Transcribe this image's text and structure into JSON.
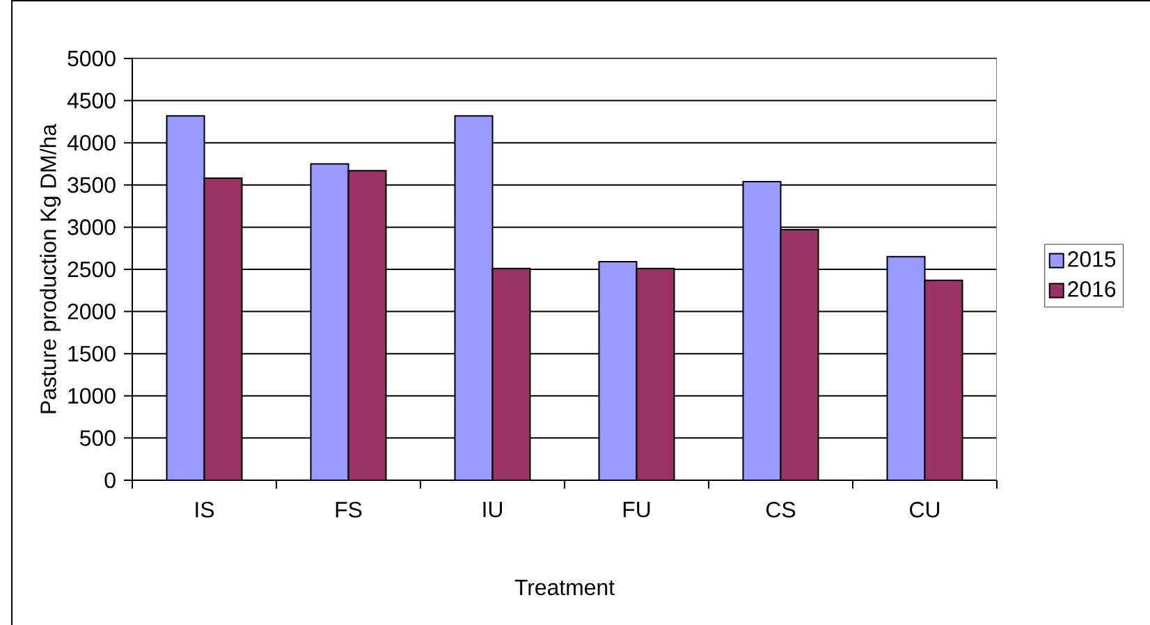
{
  "chart_data": {
    "type": "bar",
    "xlabel": "Treatment",
    "ylabel": "Pasture production Kg DM/ha",
    "categories": [
      "IS",
      "FS",
      "IU",
      "FU",
      "CS",
      "CU"
    ],
    "series": [
      {
        "name": "2015",
        "color": "#9999ff",
        "values": [
          4320,
          3750,
          4320,
          2590,
          3540,
          2650
        ]
      },
      {
        "name": "2016",
        "color": "#993366",
        "values": [
          3580,
          3670,
          2510,
          2510,
          2970,
          2370
        ]
      }
    ],
    "ylim": [
      0,
      5000
    ],
    "yticks": [
      0,
      500,
      1000,
      1500,
      2000,
      2500,
      3000,
      3500,
      4000,
      4500,
      5000
    ],
    "grid": "y",
    "legend": "right"
  }
}
